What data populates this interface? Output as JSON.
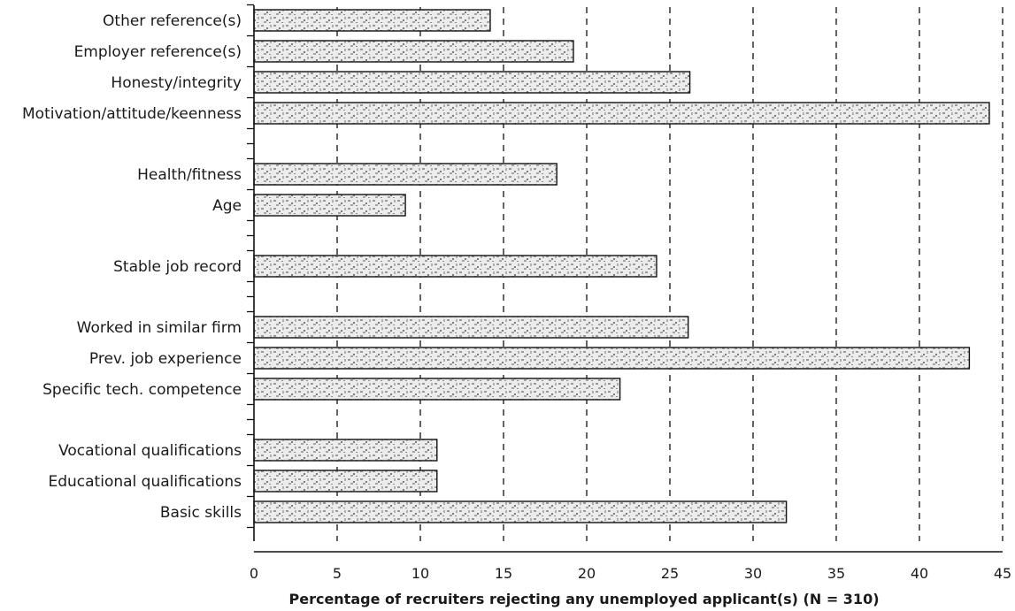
{
  "chart_data": {
    "type": "bar",
    "orientation": "horizontal",
    "categories": [
      "Other reference(s)",
      "Employer reference(s)",
      "Honesty/integrity",
      "Motivation/attitude/keenness",
      "Health/fitness",
      "Age",
      "Stable job record",
      "Worked in similar firm",
      "Prev. job experience",
      "Specific tech. competence",
      "Vocational qualifications",
      "Educational qualifications",
      "Basic skills"
    ],
    "groups": [
      [
        "Other reference(s)",
        "Employer reference(s)",
        "Honesty/integrity",
        "Motivation/attitude/keenness"
      ],
      [
        "Health/fitness",
        "Age"
      ],
      [
        "Stable job record"
      ],
      [
        "Worked in similar firm",
        "Prev. job experience",
        "Specific tech. competence"
      ],
      [
        "Vocational qualifications",
        "Educational qualifications",
        "Basic skills"
      ]
    ],
    "values": [
      14.2,
      19.2,
      26.2,
      44.2,
      18.2,
      9.1,
      24.2,
      26.1,
      43.0,
      22.0,
      11.0,
      11.0,
      32.0
    ],
    "xlabel": "Percentage of recruiters rejecting any unemployed applicant(s) (N = 310)",
    "ylabel": "",
    "title": "",
    "xlim": [
      0,
      45
    ],
    "xticks": [
      0,
      5,
      10,
      15,
      20,
      25,
      30,
      35,
      40,
      45
    ],
    "grid": "vertical dashed",
    "legend": "none",
    "colors": {
      "bar_fill": "#dcdcdc",
      "bar_speckle": "#8a8a8a",
      "bar_edge": "#111111",
      "grid": "#111111"
    }
  }
}
